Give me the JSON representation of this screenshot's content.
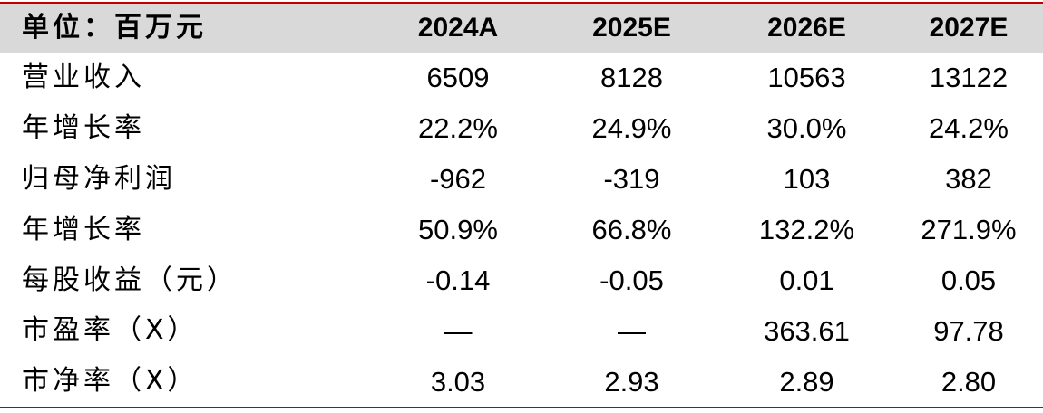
{
  "header": {
    "label": "单位：百万元",
    "years": [
      "2024A",
      "2025E",
      "2026E",
      "2027E"
    ]
  },
  "rows": [
    {
      "label": "营业收入",
      "values": [
        "6509",
        "8128",
        "10563",
        "13122"
      ]
    },
    {
      "label": "年增长率",
      "values": [
        "22.2%",
        "24.9%",
        "30.0%",
        "24.2%"
      ]
    },
    {
      "label": "归母净利润",
      "values": [
        "-962",
        "-319",
        "103",
        "382"
      ]
    },
    {
      "label": "年增长率",
      "values": [
        "50.9%",
        "66.8%",
        "132.2%",
        "271.9%"
      ]
    },
    {
      "label": "每股收益（元）",
      "values": [
        "-0.14",
        "-0.05",
        "0.01",
        "0.05"
      ]
    },
    {
      "label": "市盈率（X）",
      "values": [
        "—",
        "—",
        "363.61",
        "97.78"
      ]
    },
    {
      "label": "市净率（X）",
      "values": [
        "3.03",
        "2.93",
        "2.89",
        "2.80"
      ]
    }
  ],
  "colors": {
    "rule": "#c00000",
    "header_bg": "#d9d9d9"
  }
}
